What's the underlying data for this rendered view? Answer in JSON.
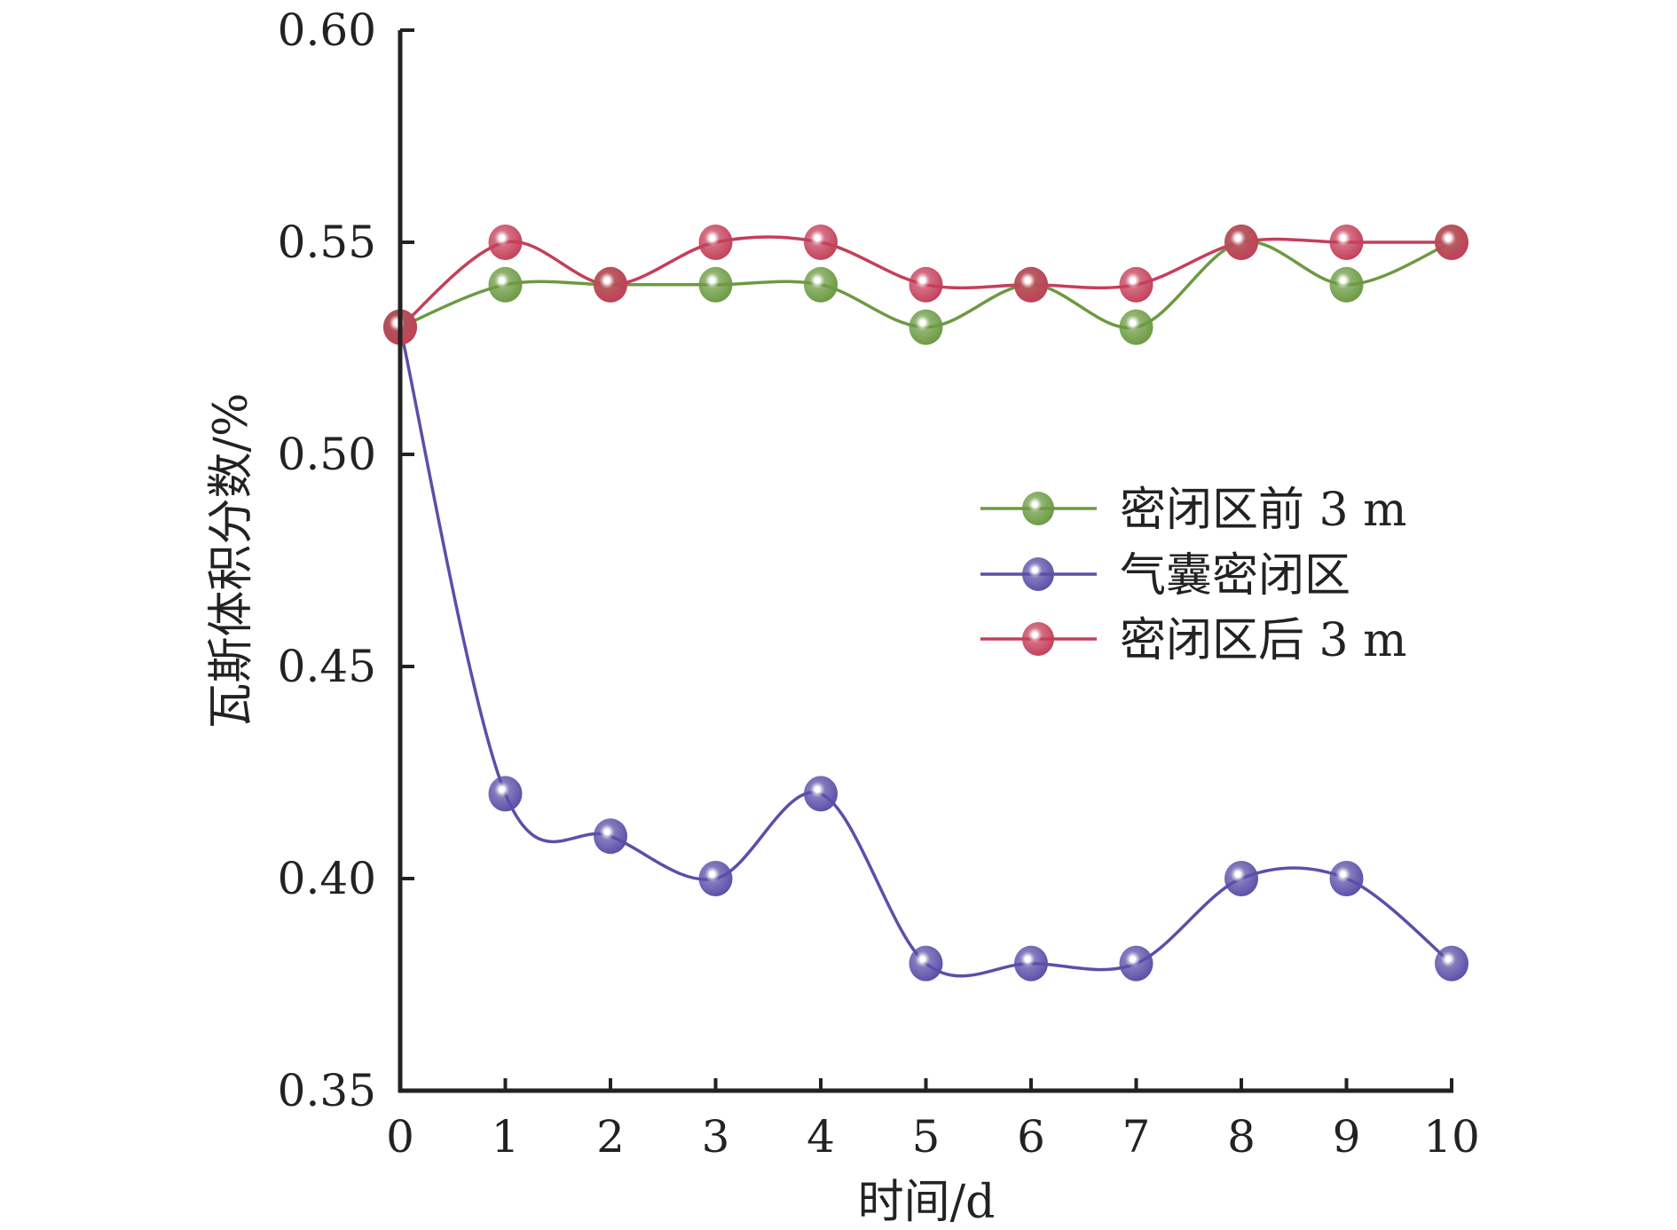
{
  "chart_data": {
    "type": "line",
    "title": "",
    "xlabel": "时间/d",
    "ylabel": "瓦斯体积分数/%",
    "x": [
      0,
      1,
      2,
      3,
      4,
      5,
      6,
      7,
      8,
      9,
      10
    ],
    "xlim": [
      0,
      10
    ],
    "ylim": [
      0.35,
      0.6
    ],
    "xticks": [
      "0",
      "1",
      "2",
      "3",
      "4",
      "5",
      "6",
      "7",
      "8",
      "9",
      "10"
    ],
    "yticks": [
      "0.35",
      "0.40",
      "0.45",
      "0.50",
      "0.55",
      "0.60"
    ],
    "grid": false,
    "legend_position": "center-right",
    "series": [
      {
        "name": "密闭区前 3 m",
        "color": "#6b9a42",
        "values": [
          0.53,
          0.54,
          0.54,
          0.54,
          0.54,
          0.53,
          0.54,
          0.53,
          0.55,
          0.54,
          0.55
        ]
      },
      {
        "name": "气囊密闭区",
        "color": "#5a4fa8",
        "values": [
          0.53,
          0.42,
          0.41,
          0.4,
          0.42,
          0.38,
          0.38,
          0.38,
          0.4,
          0.4,
          0.38
        ]
      },
      {
        "name": "密闭区后 3 m",
        "color": "#c43f5a",
        "values": [
          0.53,
          0.55,
          0.54,
          0.55,
          0.55,
          0.54,
          0.54,
          0.54,
          0.55,
          0.55,
          0.55
        ]
      }
    ]
  }
}
